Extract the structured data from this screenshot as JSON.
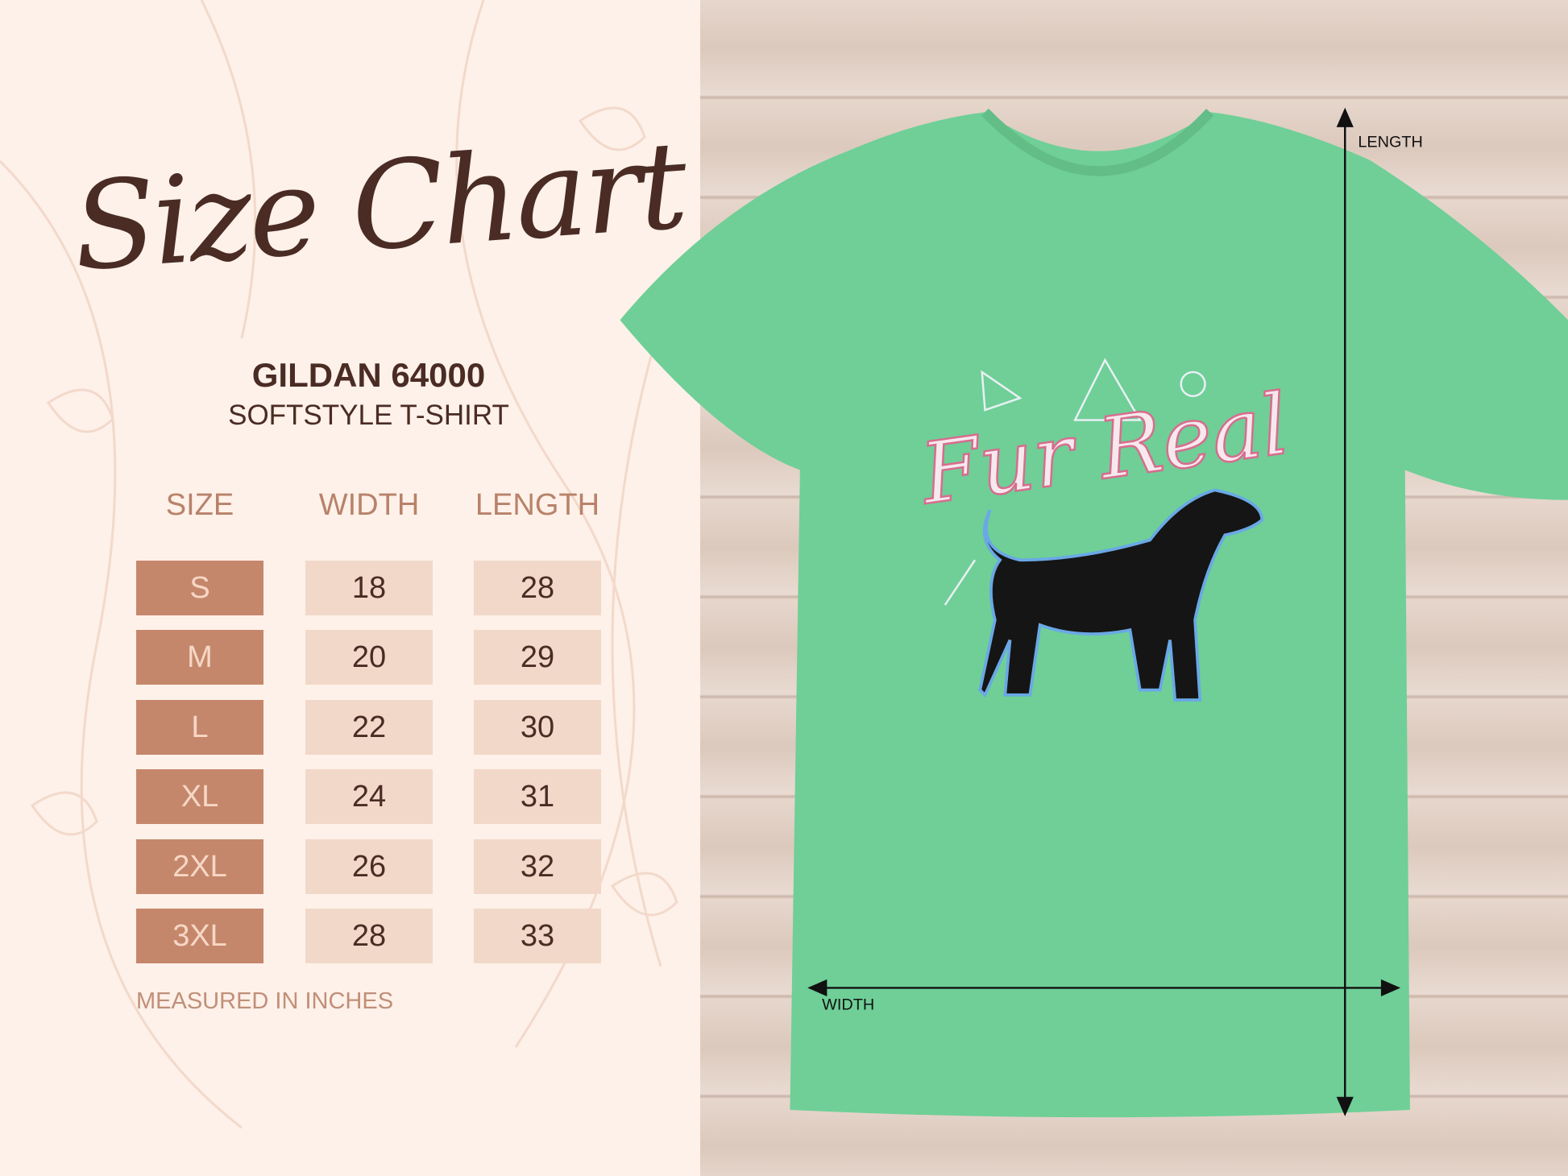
{
  "title": "Size Chart",
  "brand": "GILDAN 64000",
  "product": "SOFTSTYLE T-SHIRT",
  "table": {
    "headers": [
      "SIZE",
      "WIDTH",
      "LENGTH"
    ],
    "rows": [
      {
        "size": "S",
        "width": "18",
        "length": "28"
      },
      {
        "size": "M",
        "width": "20",
        "length": "29"
      },
      {
        "size": "L",
        "width": "22",
        "length": "30"
      },
      {
        "size": "XL",
        "width": "24",
        "length": "31"
      },
      {
        "size": "2XL",
        "width": "26",
        "length": "32"
      },
      {
        "size": "3XL",
        "width": "28",
        "length": "33"
      }
    ]
  },
  "note": "MEASURED IN INCHES",
  "shirt": {
    "color": "#6fcf97",
    "design_text": "Fur Real",
    "length_label": "LENGTH",
    "width_label": "WIDTH"
  },
  "colors": {
    "size_cell": "#c5876b",
    "value_cell": "#f2d8c8",
    "text_dark": "#4a2c24",
    "header": "#b8826a"
  }
}
